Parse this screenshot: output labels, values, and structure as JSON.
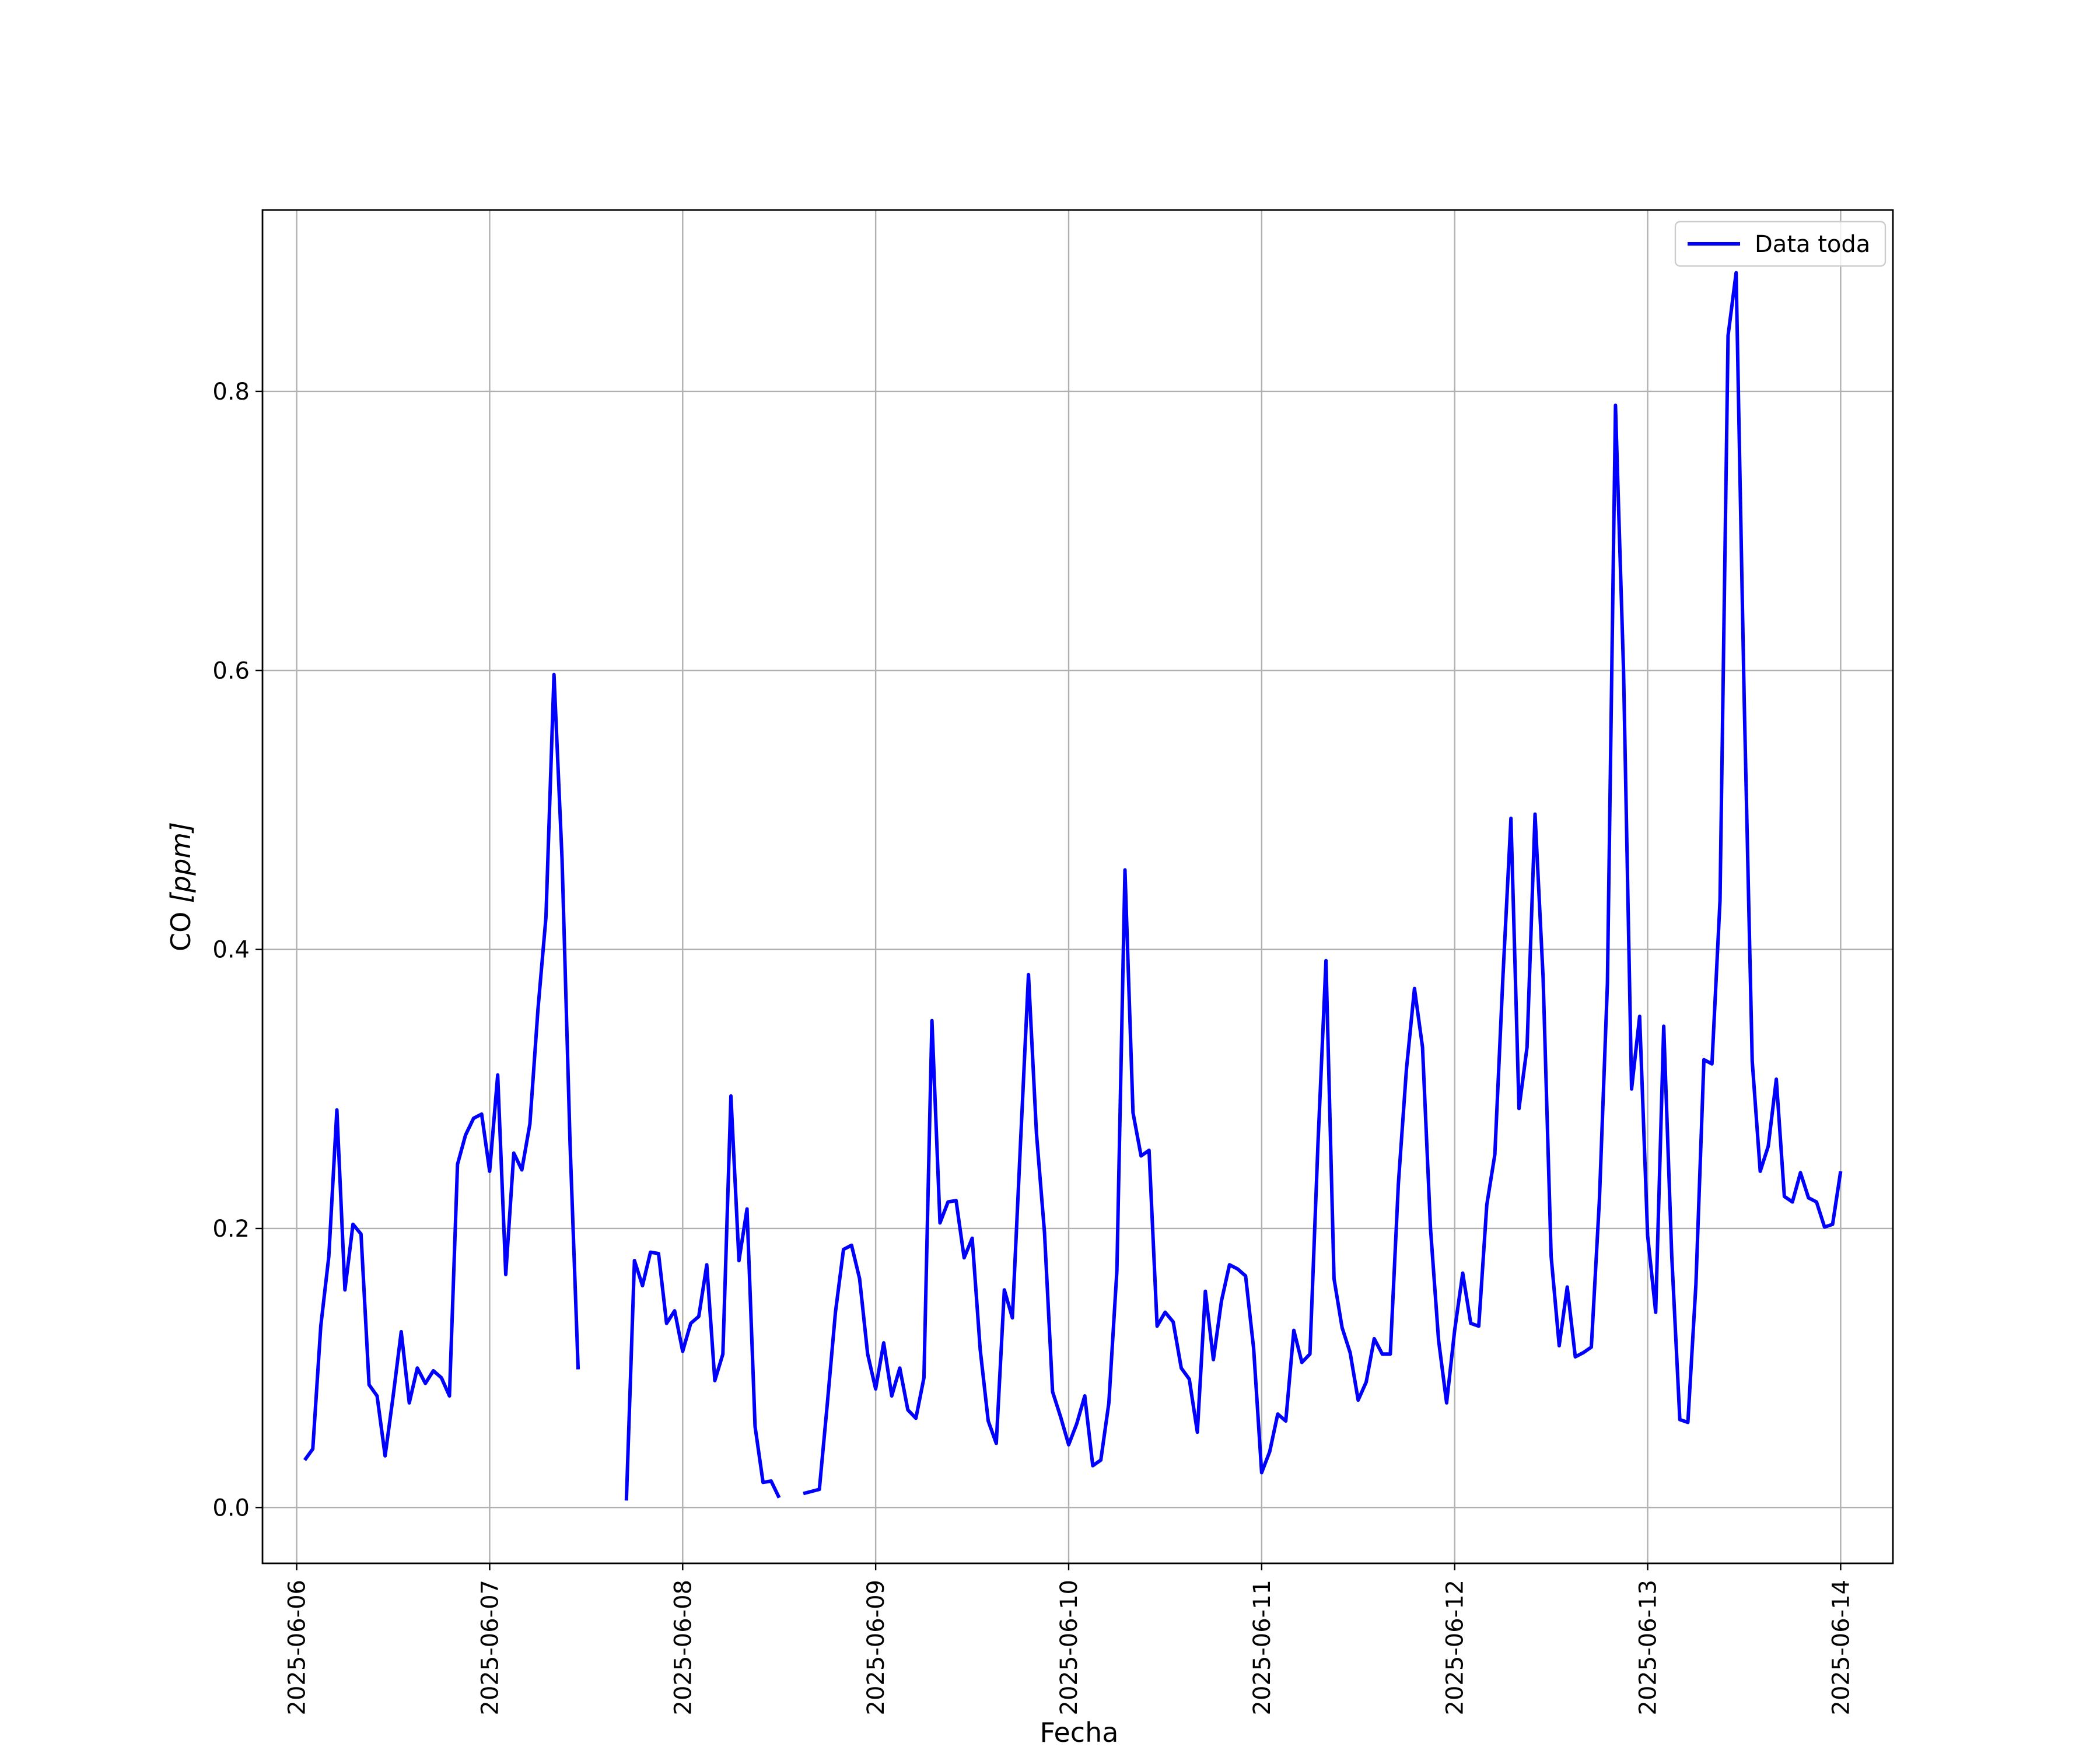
{
  "chart_data": {
    "type": "line",
    "xlabel": "Fecha",
    "ylabel_main": "CO ",
    "ylabel_unit": "[ppm]",
    "xlim": [
      "2025-06-05 19:45",
      "2025-06-14 06:30"
    ],
    "ylim": [
      -0.04,
      0.93
    ],
    "x_ticks": [
      "2025-06-06",
      "2025-06-07",
      "2025-06-08",
      "2025-06-09",
      "2025-06-10",
      "2025-06-11",
      "2025-06-12",
      "2025-06-13",
      "2025-06-14"
    ],
    "y_ticks": [
      "0.0",
      "0.2",
      "0.4",
      "0.6",
      "0.8"
    ],
    "y_tick_values": [
      0.0,
      0.2,
      0.4,
      0.6,
      0.8
    ],
    "grid": true,
    "legend_position": "top-right",
    "series": [
      {
        "name": "Data toda",
        "color": "#0000ff",
        "points": [
          [
            "2025-06-06 01:00",
            0.034
          ],
          [
            "2025-06-06 02:00",
            0.042
          ],
          [
            "2025-06-06 03:00",
            0.13
          ],
          [
            "2025-06-06 04:00",
            0.18
          ],
          [
            "2025-06-06 05:00",
            0.285
          ],
          [
            "2025-06-06 06:00",
            0.156
          ],
          [
            "2025-06-06 07:00",
            0.203
          ],
          [
            "2025-06-06 08:00",
            0.196
          ],
          [
            "2025-06-06 09:00",
            0.088
          ],
          [
            "2025-06-06 10:00",
            0.08
          ],
          [
            "2025-06-06 11:00",
            0.037
          ],
          [
            "2025-06-06 12:00",
            0.08
          ],
          [
            "2025-06-06 13:00",
            0.126
          ],
          [
            "2025-06-06 14:00",
            0.075
          ],
          [
            "2025-06-06 15:00",
            0.1
          ],
          [
            "2025-06-06 16:00",
            0.089
          ],
          [
            "2025-06-06 17:00",
            0.098
          ],
          [
            "2025-06-06 18:00",
            0.093
          ],
          [
            "2025-06-06 19:00",
            0.08
          ],
          [
            "2025-06-06 20:00",
            0.246
          ],
          [
            "2025-06-06 21:00",
            0.267
          ],
          [
            "2025-06-06 22:00",
            0.279
          ],
          [
            "2025-06-06 23:00",
            0.282
          ],
          [
            "2025-06-07 00:00",
            0.241
          ],
          [
            "2025-06-07 01:00",
            0.31
          ],
          [
            "2025-06-07 02:00",
            0.167
          ],
          [
            "2025-06-07 03:00",
            0.254
          ],
          [
            "2025-06-07 04:00",
            0.242
          ],
          [
            "2025-06-07 05:00",
            0.275
          ],
          [
            "2025-06-07 06:00",
            0.357
          ],
          [
            "2025-06-07 07:00",
            0.423
          ],
          [
            "2025-06-07 08:00",
            0.597
          ],
          [
            "2025-06-07 09:00",
            0.465
          ],
          [
            "2025-06-07 10:00",
            0.26
          ],
          [
            "2025-06-07 11:00",
            0.099
          ],
          null,
          [
            "2025-06-07 17:00",
            0.005
          ],
          [
            "2025-06-07 18:00",
            0.177
          ],
          [
            "2025-06-07 19:00",
            0.159
          ],
          [
            "2025-06-07 20:00",
            0.183
          ],
          [
            "2025-06-07 21:00",
            0.182
          ],
          [
            "2025-06-07 22:00",
            0.132
          ],
          [
            "2025-06-07 23:00",
            0.141
          ],
          [
            "2025-06-08 00:00",
            0.112
          ],
          [
            "2025-06-08 01:00",
            0.132
          ],
          [
            "2025-06-08 02:00",
            0.137
          ],
          [
            "2025-06-08 03:00",
            0.174
          ],
          [
            "2025-06-08 04:00",
            0.091
          ],
          [
            "2025-06-08 05:00",
            0.11
          ],
          [
            "2025-06-08 06:00",
            0.295
          ],
          [
            "2025-06-08 07:00",
            0.177
          ],
          [
            "2025-06-08 08:00",
            0.214
          ],
          [
            "2025-06-08 09:00",
            0.058
          ],
          [
            "2025-06-08 10:00",
            0.018
          ],
          [
            "2025-06-08 11:00",
            0.019
          ],
          [
            "2025-06-08 12:00",
            0.007
          ],
          null,
          [
            "2025-06-08 15:00",
            0.01
          ],
          [
            "2025-06-08 17:00",
            0.013
          ],
          [
            "2025-06-08 18:00",
            0.075
          ],
          [
            "2025-06-08 19:00",
            0.14
          ],
          [
            "2025-06-08 20:00",
            0.185
          ],
          [
            "2025-06-08 21:00",
            0.188
          ],
          [
            "2025-06-08 22:00",
            0.164
          ],
          [
            "2025-06-08 23:00",
            0.11
          ],
          [
            "2025-06-09 00:00",
            0.085
          ],
          [
            "2025-06-09 01:00",
            0.118
          ],
          [
            "2025-06-09 02:00",
            0.08
          ],
          [
            "2025-06-09 03:00",
            0.1
          ],
          [
            "2025-06-09 04:00",
            0.07
          ],
          [
            "2025-06-09 05:00",
            0.064
          ],
          [
            "2025-06-09 06:00",
            0.093
          ],
          [
            "2025-06-09 07:00",
            0.349
          ],
          [
            "2025-06-09 08:00",
            0.204
          ],
          [
            "2025-06-09 09:00",
            0.219
          ],
          [
            "2025-06-09 10:00",
            0.22
          ],
          [
            "2025-06-09 11:00",
            0.179
          ],
          [
            "2025-06-09 12:00",
            0.193
          ],
          [
            "2025-06-09 13:00",
            0.113
          ],
          [
            "2025-06-09 14:00",
            0.062
          ],
          [
            "2025-06-09 15:00",
            0.046
          ],
          [
            "2025-06-09 16:00",
            0.156
          ],
          [
            "2025-06-09 17:00",
            0.136
          ],
          [
            "2025-06-09 18:00",
            0.26
          ],
          [
            "2025-06-09 19:00",
            0.382
          ],
          [
            "2025-06-09 20:00",
            0.268
          ],
          [
            "2025-06-09 21:00",
            0.197
          ],
          [
            "2025-06-09 22:00",
            0.083
          ],
          [
            "2025-06-09 23:00",
            0.065
          ],
          [
            "2025-06-10 00:00",
            0.045
          ],
          [
            "2025-06-10 01:00",
            0.06
          ],
          [
            "2025-06-10 02:00",
            0.08
          ],
          [
            "2025-06-10 03:00",
            0.03
          ],
          [
            "2025-06-10 04:00",
            0.034
          ],
          [
            "2025-06-10 05:00",
            0.075
          ],
          [
            "2025-06-10 06:00",
            0.17
          ],
          [
            "2025-06-10 07:00",
            0.457
          ],
          [
            "2025-06-10 08:00",
            0.283
          ],
          [
            "2025-06-10 09:00",
            0.252
          ],
          [
            "2025-06-10 10:00",
            0.256
          ],
          [
            "2025-06-10 11:00",
            0.13
          ],
          [
            "2025-06-10 12:00",
            0.14
          ],
          [
            "2025-06-10 13:00",
            0.133
          ],
          [
            "2025-06-10 14:00",
            0.1
          ],
          [
            "2025-06-10 15:00",
            0.092
          ],
          [
            "2025-06-10 16:00",
            0.054
          ],
          [
            "2025-06-10 17:00",
            0.155
          ],
          [
            "2025-06-10 18:00",
            0.106
          ],
          [
            "2025-06-10 19:00",
            0.148
          ],
          [
            "2025-06-10 20:00",
            0.174
          ],
          [
            "2025-06-10 21:00",
            0.171
          ],
          [
            "2025-06-10 22:00",
            0.166
          ],
          [
            "2025-06-10 23:00",
            0.114
          ],
          [
            "2025-06-11 00:00",
            0.025
          ],
          [
            "2025-06-11 01:00",
            0.04
          ],
          [
            "2025-06-11 02:00",
            0.067
          ],
          [
            "2025-06-11 03:00",
            0.062
          ],
          [
            "2025-06-11 04:00",
            0.127
          ],
          [
            "2025-06-11 05:00",
            0.104
          ],
          [
            "2025-06-11 06:00",
            0.11
          ],
          [
            "2025-06-11 07:00",
            0.26
          ],
          [
            "2025-06-11 08:00",
            0.392
          ],
          [
            "2025-06-11 09:00",
            0.164
          ],
          [
            "2025-06-11 10:00",
            0.129
          ],
          [
            "2025-06-11 11:00",
            0.111
          ],
          [
            "2025-06-11 12:00",
            0.077
          ],
          [
            "2025-06-11 13:00",
            0.09
          ],
          [
            "2025-06-11 14:00",
            0.121
          ],
          [
            "2025-06-11 15:00",
            0.11
          ],
          [
            "2025-06-11 16:00",
            0.11
          ],
          [
            "2025-06-11 17:00",
            0.232
          ],
          [
            "2025-06-11 18:00",
            0.314
          ],
          [
            "2025-06-11 19:00",
            0.372
          ],
          [
            "2025-06-11 20:00",
            0.33
          ],
          [
            "2025-06-11 21:00",
            0.2
          ],
          [
            "2025-06-11 22:00",
            0.12
          ],
          [
            "2025-06-11 23:00",
            0.075
          ],
          [
            "2025-06-12 00:00",
            0.127
          ],
          [
            "2025-06-12 01:00",
            0.168
          ],
          [
            "2025-06-12 02:00",
            0.132
          ],
          [
            "2025-06-12 03:00",
            0.13
          ],
          [
            "2025-06-12 04:00",
            0.217
          ],
          [
            "2025-06-12 05:00",
            0.253
          ],
          [
            "2025-06-12 06:00",
            0.38
          ],
          [
            "2025-06-12 07:00",
            0.494
          ],
          [
            "2025-06-12 08:00",
            0.286
          ],
          [
            "2025-06-12 09:00",
            0.33
          ],
          [
            "2025-06-12 10:00",
            0.497
          ],
          [
            "2025-06-12 11:00",
            0.38
          ],
          [
            "2025-06-12 12:00",
            0.18
          ],
          [
            "2025-06-12 13:00",
            0.116
          ],
          [
            "2025-06-12 14:00",
            0.158
          ],
          [
            "2025-06-12 15:00",
            0.108
          ],
          [
            "2025-06-12 16:00",
            0.111
          ],
          [
            "2025-06-12 17:00",
            0.115
          ],
          [
            "2025-06-12 18:00",
            0.22
          ],
          [
            "2025-06-12 19:00",
            0.376
          ],
          [
            "2025-06-12 20:00",
            0.79
          ],
          [
            "2025-06-12 21:00",
            0.6
          ],
          [
            "2025-06-12 22:00",
            0.3
          ],
          [
            "2025-06-12 23:00",
            0.352
          ],
          [
            "2025-06-13 00:00",
            0.195
          ],
          [
            "2025-06-13 01:00",
            0.14
          ],
          [
            "2025-06-13 02:00",
            0.345
          ],
          [
            "2025-06-13 03:00",
            0.18
          ],
          [
            "2025-06-13 04:00",
            0.063
          ],
          [
            "2025-06-13 05:00",
            0.061
          ],
          [
            "2025-06-13 06:00",
            0.16
          ],
          [
            "2025-06-13 07:00",
            0.321
          ],
          [
            "2025-06-13 08:00",
            0.318
          ],
          [
            "2025-06-13 09:00",
            0.435
          ],
          [
            "2025-06-13 10:00",
            0.84
          ],
          [
            "2025-06-13 11:00",
            0.885
          ],
          [
            "2025-06-13 12:00",
            0.58
          ],
          [
            "2025-06-13 13:00",
            0.32
          ],
          [
            "2025-06-13 14:00",
            0.241
          ],
          [
            "2025-06-13 15:00",
            0.259
          ],
          [
            "2025-06-13 16:00",
            0.307
          ],
          [
            "2025-06-13 17:00",
            0.223
          ],
          [
            "2025-06-13 18:00",
            0.219
          ],
          [
            "2025-06-13 19:00",
            0.24
          ],
          [
            "2025-06-13 20:00",
            0.222
          ],
          [
            "2025-06-13 21:00",
            0.219
          ],
          [
            "2025-06-13 22:00",
            0.201
          ],
          [
            "2025-06-13 23:00",
            0.203
          ],
          [
            "2025-06-14 00:00",
            0.241
          ]
        ]
      }
    ]
  }
}
